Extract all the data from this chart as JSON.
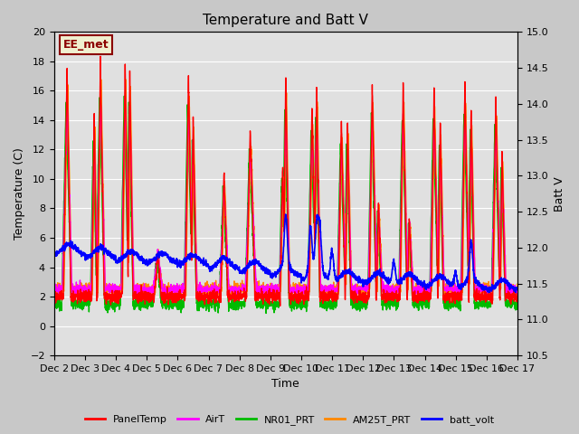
{
  "title": "Temperature and Batt V",
  "xlabel": "Time",
  "ylabel_left": "Temperature (C)",
  "ylabel_right": "Batt V",
  "xlim": [
    0,
    15
  ],
  "ylim_left": [
    -2,
    20
  ],
  "ylim_right": [
    10.5,
    15.0
  ],
  "xtick_labels": [
    "Dec 2",
    "Dec 3",
    "Dec 4",
    "Dec 5",
    "Dec 6",
    "Dec 7",
    "Dec 8",
    "Dec 9",
    "Dec 10",
    "Dec 11",
    "Dec 12",
    "Dec 13",
    "Dec 14",
    "Dec 15",
    "Dec 16",
    "Dec 17"
  ],
  "yticks_left": [
    -2,
    0,
    2,
    4,
    6,
    8,
    10,
    12,
    14,
    16,
    18,
    20
  ],
  "yticks_right": [
    10.5,
    11.0,
    11.5,
    12.0,
    12.5,
    13.0,
    13.5,
    14.0,
    14.5,
    15.0
  ],
  "fig_facecolor": "#c8c8c8",
  "ax_facecolor": "#e0e0e0",
  "grid_color": "#ffffff",
  "annotation_text": "EE_met",
  "annotation_color": "#8b0000",
  "annotation_bg": "#f0f0d0",
  "legend_entries": [
    "PanelTemp",
    "AirT",
    "NR01_PRT",
    "AM25T_PRT",
    "batt_volt"
  ],
  "line_colors": [
    "#ff0000",
    "#ff00ff",
    "#00bb00",
    "#ff8800",
    "#0000ff"
  ],
  "line_widths": [
    1.0,
    1.0,
    1.0,
    1.0,
    1.2
  ]
}
